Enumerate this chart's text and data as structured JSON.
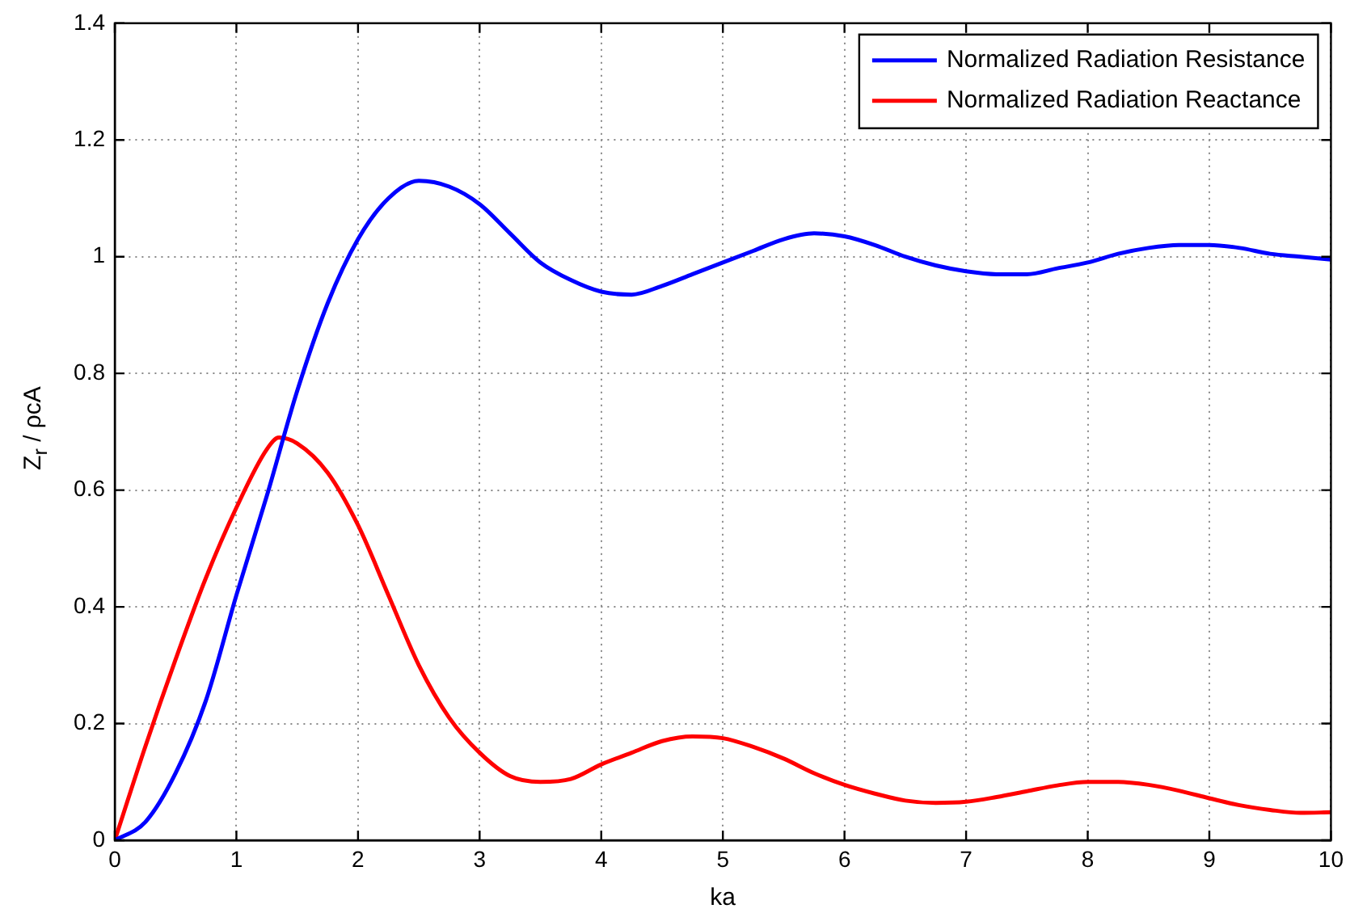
{
  "chart_data": {
    "type": "line",
    "xlabel": "ka",
    "ylabel": "Z$_{r}$ / ρcA",
    "xlim": [
      0,
      10
    ],
    "ylim": [
      0,
      1.4
    ],
    "xticks": [
      0,
      1,
      2,
      3,
      4,
      5,
      6,
      7,
      8,
      9,
      10
    ],
    "yticks": [
      0,
      0.2,
      0.4,
      0.6,
      0.8,
      1,
      1.2,
      1.4
    ],
    "grid": true,
    "legend": "top right",
    "marker": "none",
    "line_style": "solid",
    "series": [
      {
        "name": "Normalized Radiation Resistance",
        "color": "#0000ff",
        "x": [
          0,
          0.25,
          0.5,
          0.75,
          1,
          1.25,
          1.5,
          1.75,
          2,
          2.25,
          2.5,
          2.75,
          3,
          3.25,
          3.5,
          3.75,
          4,
          4.25,
          4.5,
          4.75,
          5,
          5.25,
          5.5,
          5.75,
          6,
          6.25,
          6.5,
          6.75,
          7,
          7.25,
          7.5,
          7.75,
          8,
          8.25,
          8.5,
          8.75,
          9,
          9.25,
          9.5,
          9.75,
          10
        ],
        "values": [
          0,
          0.031,
          0.115,
          0.24,
          0.42,
          0.59,
          0.77,
          0.92,
          1.03,
          1.1,
          1.13,
          1.12,
          1.09,
          1.04,
          0.99,
          0.96,
          0.94,
          0.935,
          0.95,
          0.97,
          0.99,
          1.01,
          1.03,
          1.04,
          1.035,
          1.02,
          1,
          0.985,
          0.975,
          0.97,
          0.97,
          0.98,
          0.99,
          1.005,
          1.015,
          1.02,
          1.02,
          1.015,
          1.005,
          1,
          0.995
        ]
      },
      {
        "name": "Normalized Radiation Reactance",
        "color": "#ff0000",
        "x": [
          0,
          0.25,
          0.5,
          0.75,
          1,
          1.25,
          1.35,
          1.5,
          1.75,
          2,
          2.25,
          2.5,
          2.75,
          3,
          3.25,
          3.5,
          3.75,
          4,
          4.25,
          4.5,
          4.75,
          5,
          5.25,
          5.5,
          5.75,
          6,
          6.25,
          6.5,
          6.75,
          7,
          7.25,
          7.5,
          7.75,
          8,
          8.25,
          8.5,
          8.75,
          9,
          9.25,
          9.5,
          9.75,
          10
        ],
        "values": [
          0,
          0.16,
          0.31,
          0.45,
          0.57,
          0.67,
          0.69,
          0.68,
          0.63,
          0.54,
          0.42,
          0.3,
          0.21,
          0.15,
          0.11,
          0.1,
          0.105,
          0.13,
          0.15,
          0.17,
          0.178,
          0.175,
          0.16,
          0.14,
          0.115,
          0.095,
          0.08,
          0.068,
          0.064,
          0.066,
          0.074,
          0.084,
          0.094,
          0.1,
          0.1,
          0.095,
          0.085,
          0.072,
          0.06,
          0.052,
          0.047,
          0.048
        ]
      }
    ]
  }
}
